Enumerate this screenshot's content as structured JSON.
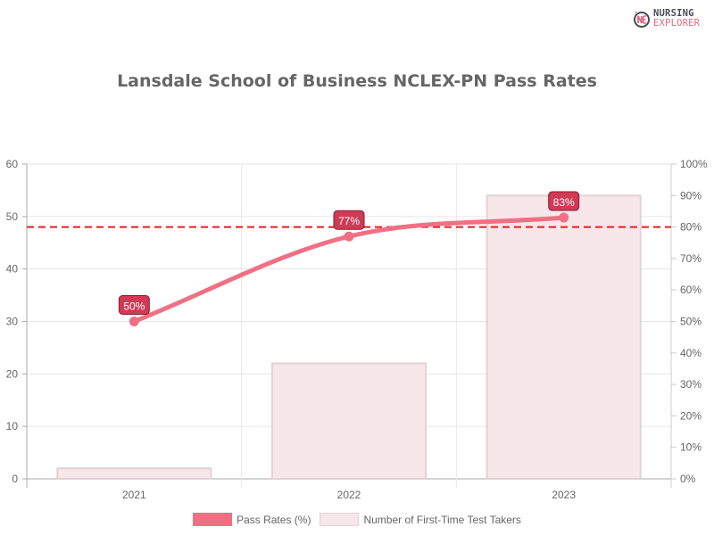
{
  "logo": {
    "line1": "NURSING",
    "line2": "EXPLORER",
    "icon": "nursing-explorer-logo-icon"
  },
  "title": "Lansdale School of Business NCLEX-PN Pass Rates",
  "legend": {
    "line_label": "Pass Rates (%)",
    "bar_label": "Number of First-Time Test Takers"
  },
  "colors": {
    "line": "#f07083",
    "point": "#f07083",
    "bar_fill": "#f7e6ea",
    "bar_border": "#e2d2d6",
    "label_bg": "#cf3a55",
    "threshold": "#e02020",
    "title": "#666666"
  },
  "chart_data": {
    "type": "bar+line",
    "title": "Lansdale School of Business NCLEX-PN Pass Rates",
    "categories": [
      "2021",
      "2022",
      "2023"
    ],
    "series": [
      {
        "name": "Number of First-Time Test Takers",
        "type": "bar",
        "axis": "left",
        "values": [
          2,
          22,
          54
        ]
      },
      {
        "name": "Pass Rates (%)",
        "type": "line",
        "axis": "right",
        "values": [
          50,
          77,
          83
        ],
        "data_labels": [
          "50%",
          "77%",
          "83%"
        ]
      }
    ],
    "reference_lines": [
      {
        "axis": "right",
        "value": 80,
        "style": "dashed",
        "color": "#e02020"
      }
    ],
    "left_axis": {
      "range": [
        0,
        60
      ],
      "ticks": [
        "0",
        "10",
        "20",
        "30",
        "40",
        "50",
        "60"
      ]
    },
    "right_axis": {
      "range": [
        0,
        100
      ],
      "ticks": [
        "0%",
        "10%",
        "20%",
        "30%",
        "40%",
        "50%",
        "60%",
        "70%",
        "80%",
        "90%",
        "100%"
      ]
    },
    "xlabel": "",
    "ylabel": "",
    "grid": true,
    "legend_position": "bottom"
  }
}
